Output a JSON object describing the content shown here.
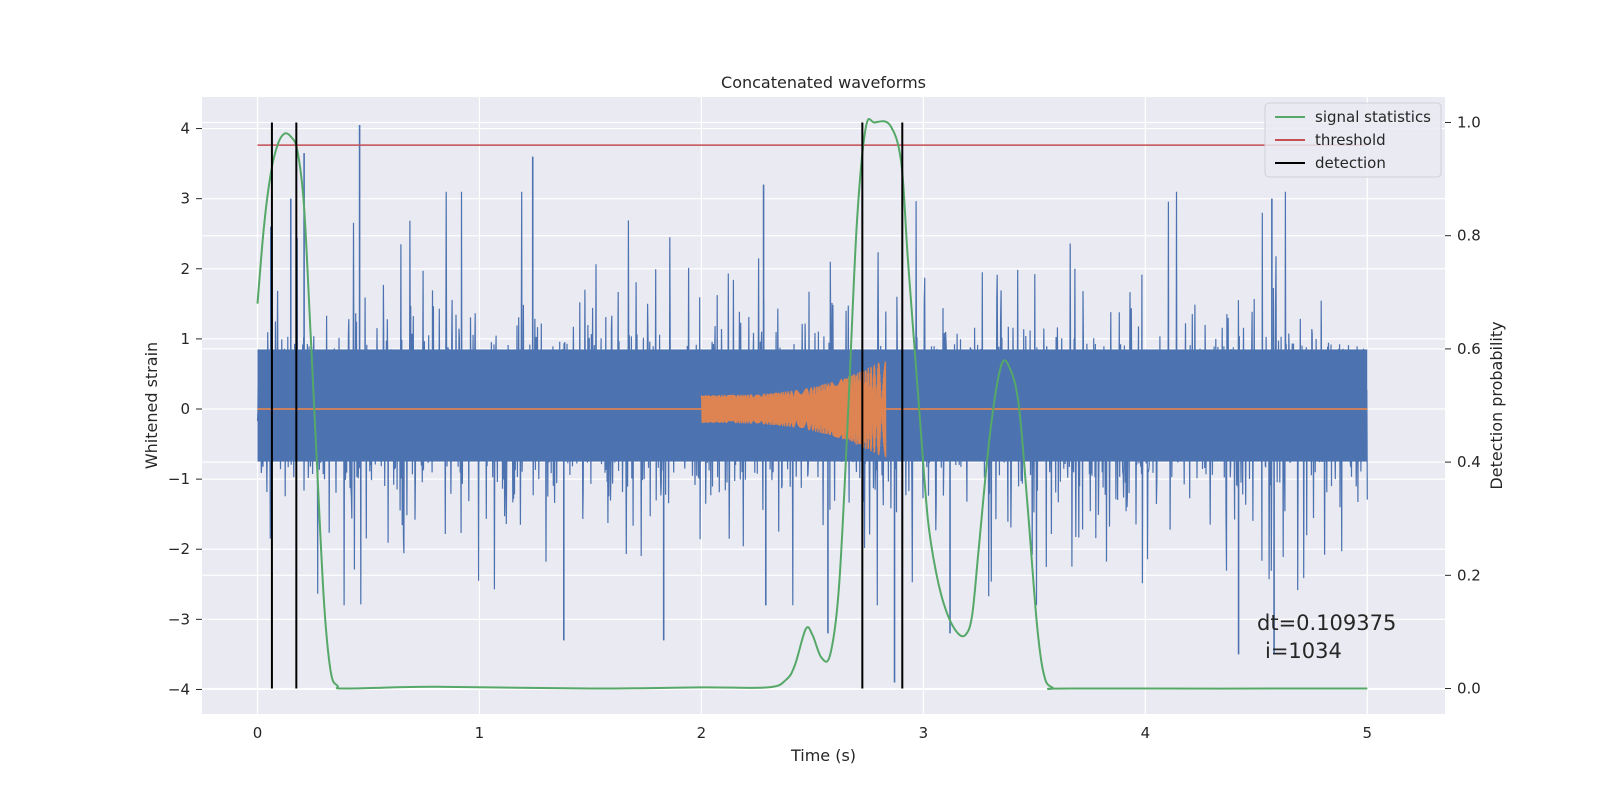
{
  "chart_data": {
    "type": "line",
    "title": "Concatenated waveforms",
    "xlabel": "Time (s)",
    "ylabel": "Whitened strain",
    "ylabel_right": "Detection probability",
    "xlim": [
      -0.25,
      5.35
    ],
    "ylim": [
      -4.35,
      4.45
    ],
    "ylim_right": [
      -0.045,
      1.045
    ],
    "x_ticks": [
      "0",
      "1",
      "2",
      "3",
      "4",
      "5"
    ],
    "y_ticks": [
      "4",
      "3",
      "2",
      "1",
      "0",
      "−1",
      "−2",
      "−3",
      "−4"
    ],
    "y_ticks_right": [
      "1.0",
      "0.8",
      "0.6",
      "0.4",
      "0.2",
      "0.0"
    ],
    "grid": true,
    "legend": {
      "placement": "top-right",
      "entries": [
        {
          "label": "signal statistics",
          "color": "#55a868"
        },
        {
          "label": "threshold",
          "color": "#c44e52"
        },
        {
          "label": "detection",
          "color": "#000000"
        }
      ]
    },
    "annotation": {
      "line1": "dt=0.109375",
      "line2": "i=1034"
    },
    "series": [
      {
        "kind": "noise",
        "color": "#4c72b0",
        "x_range": [
          0,
          5
        ],
        "outer_band": [
          -2.4,
          2.6
        ],
        "inner_band": [
          -0.75,
          0.85
        ],
        "extreme_spikes": [
          {
            "x": 0.06,
            "y": 2.6
          },
          {
            "x": 0.15,
            "y": 3.0
          },
          {
            "x": 0.21,
            "y": 3.65
          },
          {
            "x": 0.46,
            "y": 4.05
          },
          {
            "x": 1.24,
            "y": 3.6
          },
          {
            "x": 1.38,
            "y": -3.3
          },
          {
            "x": 1.83,
            "y": -3.3
          },
          {
            "x": 2.28,
            "y": 3.2
          },
          {
            "x": 2.29,
            "y": -2.8
          },
          {
            "x": 2.57,
            "y": -3.2
          },
          {
            "x": 2.87,
            "y": -3.9
          },
          {
            "x": 3.12,
            "y": -3.2
          },
          {
            "x": 4.42,
            "y": -3.5
          },
          {
            "x": 4.57,
            "y": 3.0
          },
          {
            "x": 4.58,
            "y": -3.5
          }
        ]
      },
      {
        "kind": "chirp",
        "color": "#dd8452",
        "x_range": [
          0,
          5
        ],
        "chirp_start": 2.0,
        "chirp_end": 2.83,
        "start_amplitude": 0.2,
        "peak_amplitude": 0.72
      },
      {
        "name": "threshold",
        "axis": "right",
        "color": "#c44e52",
        "x": [
          0,
          5
        ],
        "y": [
          0.96,
          0.96
        ]
      },
      {
        "name": "signal statistics",
        "axis": "right",
        "color": "#55a868",
        "x": [
          0,
          0.03,
          0.06,
          0.09,
          0.12,
          0.15,
          0.18,
          0.21,
          0.24,
          0.27,
          0.3,
          0.33,
          0.36,
          0.4,
          0.8,
          1.5,
          2.0,
          2.3,
          2.38,
          2.42,
          2.47,
          2.5,
          2.54,
          2.58,
          2.62,
          2.66,
          2.7,
          2.74,
          2.78,
          2.85,
          2.9,
          2.93,
          2.98,
          3.02,
          3.06,
          3.1,
          3.15,
          3.19,
          3.22,
          3.25,
          3.3,
          3.35,
          3.39,
          3.43,
          3.47,
          3.51,
          3.54,
          3.58,
          3.7,
          5.0
        ],
        "y": [
          0.68,
          0.82,
          0.91,
          0.96,
          0.98,
          0.975,
          0.95,
          0.85,
          0.62,
          0.38,
          0.15,
          0.03,
          0.005,
          0.0,
          0.003,
          0.0,
          0.002,
          0.002,
          0.015,
          0.04,
          0.105,
          0.095,
          0.055,
          0.06,
          0.18,
          0.48,
          0.82,
          0.99,
          1.0,
          0.995,
          0.93,
          0.76,
          0.5,
          0.3,
          0.2,
          0.14,
          0.1,
          0.095,
          0.13,
          0.25,
          0.45,
          0.57,
          0.565,
          0.5,
          0.32,
          0.12,
          0.03,
          0.002,
          0.0,
          0.0
        ]
      },
      {
        "name": "detection",
        "kind": "vlines",
        "color": "#000000",
        "x": [
          0.065,
          0.175,
          2.725,
          2.905
        ]
      }
    ]
  }
}
